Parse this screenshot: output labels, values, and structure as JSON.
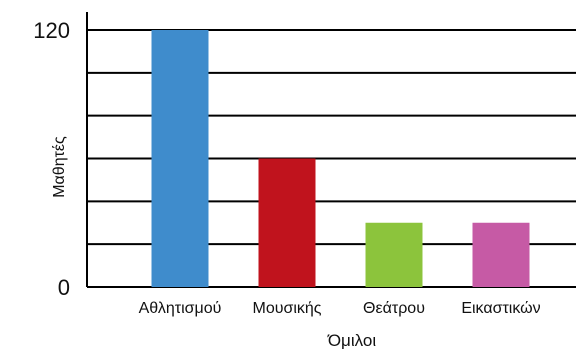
{
  "chart_data": {
    "type": "bar",
    "categories": [
      "Αθλητισμού",
      "Μουσικής",
      "Θεάτρου",
      "Εικαστικών"
    ],
    "values": [
      120,
      60,
      30,
      30
    ],
    "xlabel": "Όμιλοι",
    "ylabel": "Μαθητές",
    "ylim": [
      0,
      120
    ],
    "y_tick_labels": [
      "0",
      "120"
    ],
    "gridlines": [
      0,
      20,
      40,
      60,
      80,
      100,
      120,
      140
    ],
    "grid": true,
    "colors": [
      "#3f8ccc",
      "#c0131d",
      "#8cc43c",
      "#c65aa5"
    ]
  }
}
